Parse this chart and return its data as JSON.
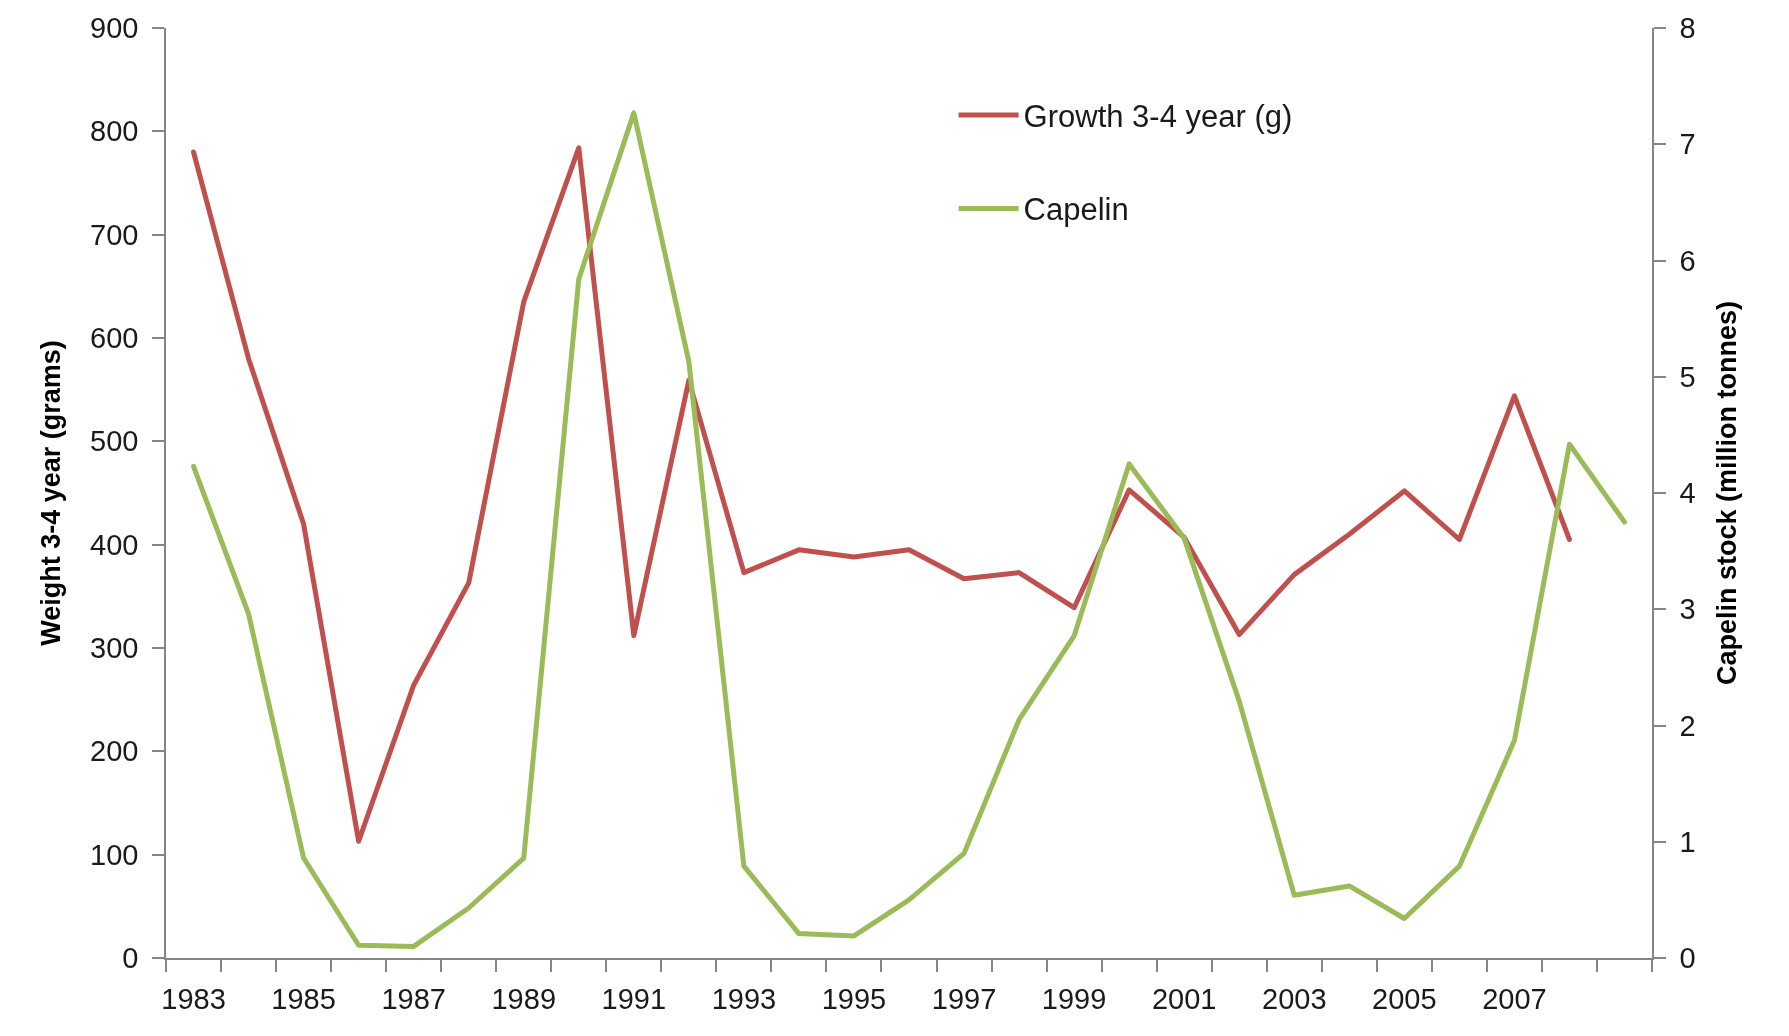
{
  "chart_data": {
    "type": "line",
    "ylabel": "Weight 3-4 year (grams)",
    "y2label": "Capelin stock (million tonnes)",
    "categories": [
      "1983",
      null,
      "1985",
      null,
      "1987",
      null,
      "1989",
      null,
      "1991",
      null,
      "1993",
      null,
      "1995",
      null,
      "1997",
      null,
      "1999",
      null,
      "2001",
      null,
      "2003",
      null,
      "2005",
      null,
      "2007",
      null,
      null
    ],
    "series": [
      {
        "name": "Growth 3-4 year (g)",
        "color": "#c0504d",
        "values": [
          780,
          580,
          420,
          113,
          264,
          363,
          635,
          784,
          312,
          559,
          373,
          395,
          388,
          395,
          367,
          373,
          339,
          453,
          407,
          313,
          371,
          410,
          452,
          405,
          544,
          405,
          null
        ]
      },
      {
        "name": "Capelin",
        "color": "#9bbb59",
        "axis": "y2",
        "values": [
          4.23,
          2.96,
          0.86,
          0.11,
          0.1,
          0.43,
          0.86,
          5.84,
          7.27,
          5.13,
          0.79,
          0.21,
          0.19,
          0.5,
          0.9,
          2.05,
          2.77,
          4.25,
          3.61,
          2.21,
          0.54,
          0.62,
          0.34,
          0.79,
          1.87,
          4.42,
          3.75
        ]
      }
    ],
    "ylim": [
      0,
      900
    ],
    "yticks": [
      0,
      100,
      200,
      300,
      400,
      500,
      600,
      700,
      800,
      900
    ],
    "y2lim": [
      0,
      8
    ],
    "y2ticks": [
      0,
      1,
      2,
      3,
      4,
      5,
      6,
      7,
      8
    ],
    "legend": "top right",
    "line_style": "solid"
  }
}
